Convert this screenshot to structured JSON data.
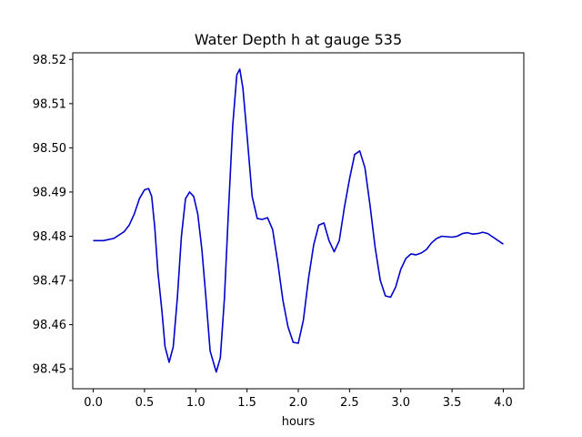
{
  "chart_data": {
    "type": "line",
    "title": "Water Depth h at gauge 535",
    "xlabel": "hours",
    "ylabel": "",
    "xlim": [
      -0.2,
      4.2
    ],
    "ylim": [
      98.4455,
      98.5215
    ],
    "xticks": [
      0.0,
      0.5,
      1.0,
      1.5,
      2.0,
      2.5,
      3.0,
      3.5,
      4.0
    ],
    "xtick_labels": [
      "0.0",
      "0.5",
      "1.0",
      "1.5",
      "2.0",
      "2.5",
      "3.0",
      "3.5",
      "4.0"
    ],
    "yticks": [
      98.45,
      98.46,
      98.47,
      98.48,
      98.49,
      98.5,
      98.51,
      98.52
    ],
    "ytick_labels": [
      "98.45",
      "98.46",
      "98.47",
      "98.48",
      "98.49",
      "98.50",
      "98.51",
      "98.52"
    ],
    "grid": false,
    "series": [
      {
        "color": "#0000cc",
        "points": [
          [
            0.0,
            98.479
          ],
          [
            0.1,
            98.479
          ],
          [
            0.2,
            98.4795
          ],
          [
            0.3,
            98.481
          ],
          [
            0.35,
            98.4825
          ],
          [
            0.4,
            98.485
          ],
          [
            0.45,
            98.4885
          ],
          [
            0.5,
            98.4905
          ],
          [
            0.54,
            98.4908
          ],
          [
            0.57,
            98.489
          ],
          [
            0.6,
            98.482
          ],
          [
            0.63,
            98.472
          ],
          [
            0.67,
            98.463
          ],
          [
            0.7,
            98.455
          ],
          [
            0.74,
            98.4515
          ],
          [
            0.78,
            98.455
          ],
          [
            0.82,
            98.466
          ],
          [
            0.86,
            98.48
          ],
          [
            0.9,
            98.4885
          ],
          [
            0.94,
            98.49
          ],
          [
            0.98,
            98.489
          ],
          [
            1.02,
            98.485
          ],
          [
            1.06,
            98.477
          ],
          [
            1.1,
            98.466
          ],
          [
            1.14,
            98.454
          ],
          [
            1.2,
            98.4493
          ],
          [
            1.24,
            98.4525
          ],
          [
            1.28,
            98.466
          ],
          [
            1.32,
            98.486
          ],
          [
            1.36,
            98.505
          ],
          [
            1.4,
            98.5165
          ],
          [
            1.43,
            98.5178
          ],
          [
            1.46,
            98.5135
          ],
          [
            1.5,
            98.503
          ],
          [
            1.55,
            98.489
          ],
          [
            1.6,
            98.484
          ],
          [
            1.65,
            98.4838
          ],
          [
            1.7,
            98.4842
          ],
          [
            1.75,
            98.4815
          ],
          [
            1.8,
            98.474
          ],
          [
            1.85,
            98.4655
          ],
          [
            1.9,
            98.4595
          ],
          [
            1.95,
            98.456
          ],
          [
            2.0,
            98.4558
          ],
          [
            2.05,
            98.461
          ],
          [
            2.1,
            98.4705
          ],
          [
            2.15,
            98.478
          ],
          [
            2.2,
            98.4825
          ],
          [
            2.25,
            98.483
          ],
          [
            2.3,
            98.479
          ],
          [
            2.35,
            98.4765
          ],
          [
            2.4,
            98.479
          ],
          [
            2.45,
            98.4865
          ],
          [
            2.5,
            98.493
          ],
          [
            2.55,
            98.4985
          ],
          [
            2.6,
            98.4993
          ],
          [
            2.65,
            98.4955
          ],
          [
            2.7,
            98.487
          ],
          [
            2.75,
            98.4775
          ],
          [
            2.8,
            98.47
          ],
          [
            2.85,
            98.4665
          ],
          [
            2.9,
            98.4662
          ],
          [
            2.95,
            98.4685
          ],
          [
            3.0,
            98.4725
          ],
          [
            3.05,
            98.475
          ],
          [
            3.1,
            98.476
          ],
          [
            3.15,
            98.4758
          ],
          [
            3.2,
            98.4762
          ],
          [
            3.25,
            98.477
          ],
          [
            3.3,
            98.4785
          ],
          [
            3.35,
            98.4795
          ],
          [
            3.4,
            98.48
          ],
          [
            3.45,
            98.4799
          ],
          [
            3.5,
            98.4798
          ],
          [
            3.55,
            98.48
          ],
          [
            3.6,
            98.4806
          ],
          [
            3.65,
            98.4808
          ],
          [
            3.7,
            98.4805
          ],
          [
            3.75,
            98.4806
          ],
          [
            3.8,
            98.4809
          ],
          [
            3.85,
            98.4806
          ],
          [
            3.9,
            98.4798
          ],
          [
            3.95,
            98.479
          ],
          [
            4.0,
            98.4782
          ]
        ]
      }
    ]
  }
}
